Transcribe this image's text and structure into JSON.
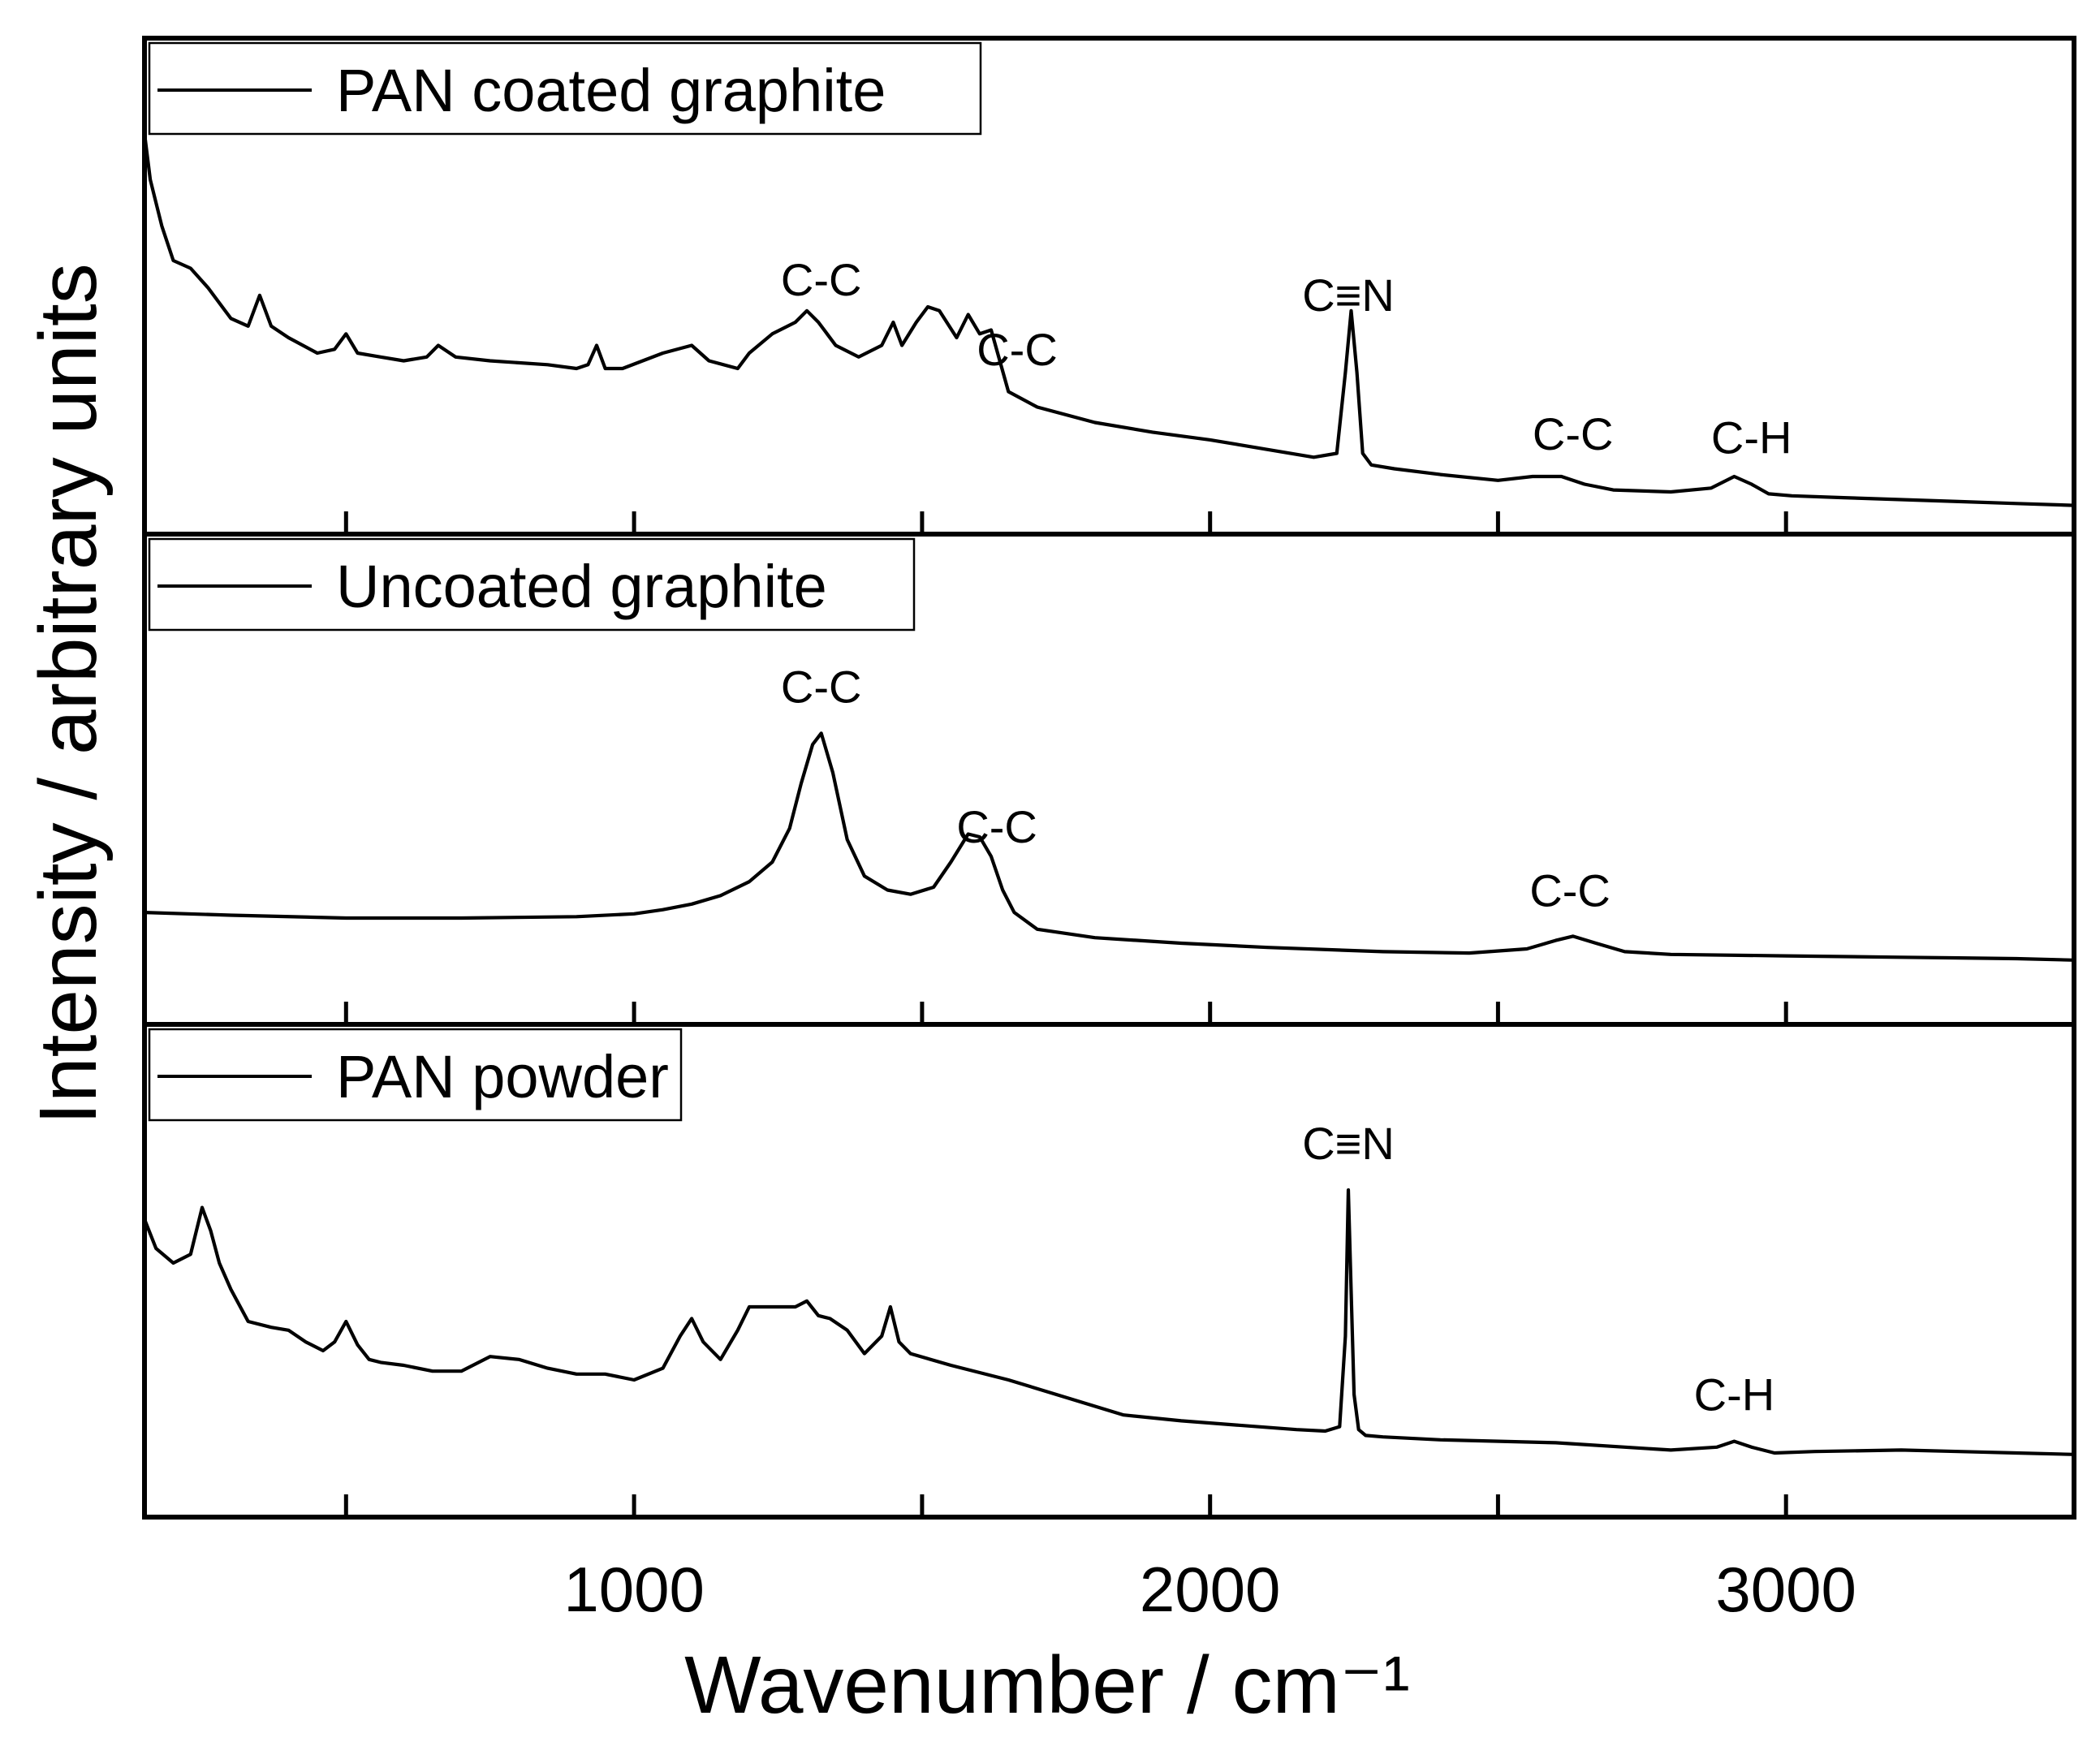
{
  "chart_data": {
    "type": "line",
    "xlabel": "Wavenumber / cm⁻¹",
    "ylabel": "Intensity / arbitrary units",
    "xlim": [
      150,
      3500
    ],
    "xticks": [
      1000,
      2000,
      3000
    ],
    "minor_xticks": [
      500,
      1500,
      2500
    ],
    "panels": [
      {
        "legend": "PAN coated graphite",
        "ylim": [
          0,
          100
        ],
        "series": {
          "x": [
            150,
            160,
            180,
            200,
            230,
            260,
            300,
            330,
            350,
            370,
            400,
            450,
            480,
            500,
            520,
            560,
            600,
            640,
            660,
            690,
            750,
            850,
            900,
            920,
            935,
            950,
            980,
            1050,
            1100,
            1130,
            1180,
            1200,
            1240,
            1280,
            1300,
            1320,
            1350,
            1390,
            1430,
            1450,
            1465,
            1490,
            1510,
            1530,
            1560,
            1580,
            1600,
            1620,
            1650,
            1700,
            1800,
            1900,
            2000,
            2100,
            2180,
            2220,
            2235,
            2245,
            2255,
            2265,
            2280,
            2320,
            2400,
            2500,
            2560,
            2610,
            2650,
            2700,
            2800,
            2870,
            2910,
            2940,
            2970,
            3010,
            3100,
            3200,
            3300,
            3400,
            3500
          ],
          "y": [
            97,
            85,
            73,
            64,
            62,
            57,
            49,
            47,
            55,
            47,
            44,
            40,
            41,
            45,
            40,
            39,
            38,
            39,
            42,
            39,
            38,
            37,
            36,
            37,
            42,
            36,
            36,
            40,
            42,
            38,
            36,
            40,
            45,
            48,
            51,
            48,
            42,
            39,
            42,
            48,
            42,
            48,
            52,
            51,
            44,
            50,
            45,
            46,
            30,
            26,
            22,
            19.5,
            17.5,
            15,
            13,
            14,
            35,
            51,
            35,
            14,
            11,
            10,
            8.5,
            7,
            8,
            8,
            6,
            4.5,
            4,
            5,
            8,
            6,
            3.5,
            3,
            2.5,
            2,
            1.5,
            1,
            0.5
          ]
        },
        "annotations": [
          {
            "text": "C-C",
            "x": 1325
          },
          {
            "text": "C-C",
            "x": 1665
          },
          {
            "text": "C≡N",
            "x": 2240
          },
          {
            "text": "C-C",
            "x": 2630
          },
          {
            "text": "C-H",
            "x": 2940
          }
        ]
      },
      {
        "legend": "Uncoated graphite",
        "ylim": [
          0,
          100
        ],
        "series": {
          "x": [
            150,
            300,
            500,
            700,
            900,
            1000,
            1050,
            1100,
            1150,
            1200,
            1240,
            1270,
            1290,
            1310,
            1325,
            1345,
            1370,
            1400,
            1440,
            1480,
            1520,
            1550,
            1580,
            1600,
            1620,
            1640,
            1660,
            1700,
            1800,
            1950,
            2100,
            2300,
            2450,
            2550,
            2600,
            2630,
            2670,
            2720,
            2800,
            3000,
            3200,
            3400,
            3500
          ],
          "y": [
            22,
            21,
            20,
            20,
            20.5,
            21.5,
            23,
            25,
            28,
            33,
            40,
            52,
            68,
            82,
            86,
            72,
            48,
            35,
            30,
            28.5,
            31,
            40,
            50,
            49,
            42,
            30,
            22,
            16,
            13,
            11,
            9.5,
            8,
            7.5,
            9,
            12,
            13.5,
            11,
            8,
            7,
            6.5,
            6,
            5.5,
            5
          ]
        },
        "annotations": [
          {
            "text": "C-C",
            "x": 1325
          },
          {
            "text": "C-C",
            "x": 1630
          },
          {
            "text": "C-C",
            "x": 2625
          }
        ]
      },
      {
        "legend": "PAN powder",
        "ylim": [
          0,
          100
        ],
        "series": {
          "x": [
            150,
            170,
            200,
            230,
            250,
            265,
            280,
            300,
            330,
            370,
            400,
            430,
            460,
            480,
            500,
            520,
            540,
            560,
            600,
            650,
            700,
            750,
            800,
            850,
            900,
            950,
            1000,
            1050,
            1080,
            1100,
            1120,
            1150,
            1180,
            1200,
            1240,
            1280,
            1300,
            1320,
            1340,
            1370,
            1400,
            1430,
            1445,
            1460,
            1480,
            1550,
            1650,
            1750,
            1850,
            1950,
            2050,
            2150,
            2200,
            2225,
            2235,
            2240,
            2245,
            2250,
            2258,
            2270,
            2300,
            2400,
            2600,
            2800,
            2880,
            2910,
            2940,
            2980,
            3050,
            3200,
            3300,
            3400,
            3500
          ],
          "y": [
            80,
            70,
            65,
            68,
            84,
            76,
            65,
            56,
            45,
            43,
            42,
            38,
            35,
            38,
            45,
            37,
            32,
            31,
            30,
            28,
            28,
            33,
            32,
            29,
            27,
            27,
            25,
            29,
            40,
            46,
            38,
            32,
            42,
            50,
            50,
            50,
            52,
            47,
            46,
            42,
            34,
            40,
            50,
            38,
            34,
            30,
            25,
            19,
            13,
            11,
            9.5,
            8,
            7.5,
            9,
            40,
            90,
            55,
            20,
            8,
            6,
            5.5,
            4.5,
            3.5,
            1,
            2,
            4,
            2,
            0,
            0.5,
            1,
            0.5,
            0,
            -0.5
          ]
        },
        "annotations": [
          {
            "text": "C≡N",
            "x": 2240
          },
          {
            "text": "C-H",
            "x": 2910
          }
        ]
      }
    ]
  }
}
